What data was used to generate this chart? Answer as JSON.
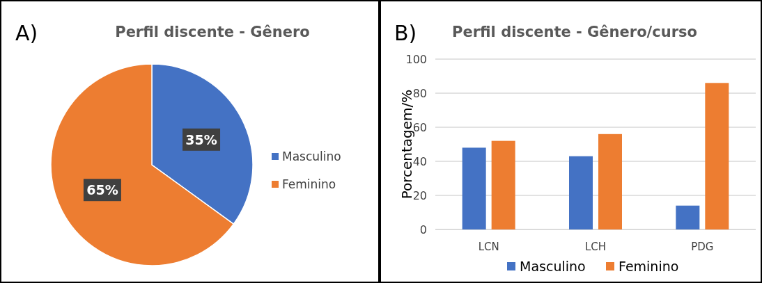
{
  "chart_data": [
    {
      "type": "pie",
      "title": "Perfil discente - Gênero",
      "categories": [
        "Masculino",
        "Feminino"
      ],
      "values": [
        35,
        65
      ],
      "colors": [
        "#4472c4",
        "#ed7d31"
      ],
      "value_labels": [
        "35%",
        "65%"
      ],
      "legend": "right",
      "annotations": [
        "A)"
      ]
    },
    {
      "type": "bar",
      "title": "Perfil discente - Gênero/curso",
      "ylabel": "Porcentagem/%",
      "categories": [
        "LCN",
        "LCH",
        "PDG"
      ],
      "series": [
        {
          "name": "Masculino",
          "color": "#4472c4",
          "values": [
            48,
            43,
            14
          ]
        },
        {
          "name": "Feminino",
          "color": "#ed7d31",
          "values": [
            52,
            56,
            86
          ]
        }
      ],
      "ylim": [
        0,
        100
      ],
      "yticks": [
        0,
        20,
        40,
        60,
        80,
        100
      ],
      "grid": "y",
      "legend": "bottom",
      "annotations": [
        "B)"
      ]
    }
  ]
}
